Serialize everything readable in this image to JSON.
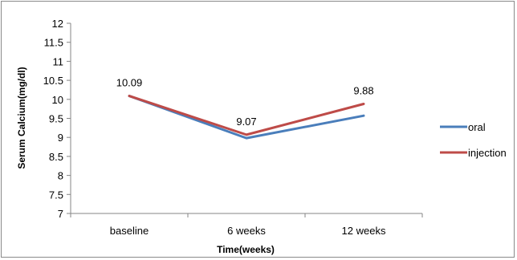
{
  "chart_data": {
    "type": "line",
    "categories": [
      "baseline",
      "6 weeks",
      "12 weeks"
    ],
    "series": [
      {
        "name": "oral",
        "values": [
          10.09,
          8.98,
          9.57
        ],
        "color": "#4a7ebb"
      },
      {
        "name": "injection",
        "values": [
          10.09,
          9.07,
          9.88
        ],
        "color": "#be4b48"
      }
    ],
    "data_labels": [
      {
        "category": "baseline",
        "text": "10.09"
      },
      {
        "category": "6 weeks",
        "text": "9.07"
      },
      {
        "category": "12 weeks",
        "text": "9.88"
      }
    ],
    "xlabel": "Time(weeks)",
    "ylabel": "Serum Calcium(mg/dl)",
    "ylim": [
      7,
      12
    ],
    "yticks": [
      "7",
      "7.5",
      "8",
      "8.5",
      "9",
      "9.5",
      "10",
      "10.5",
      "11",
      "11.5",
      "12"
    ],
    "grid": false,
    "legend_position": "right"
  }
}
